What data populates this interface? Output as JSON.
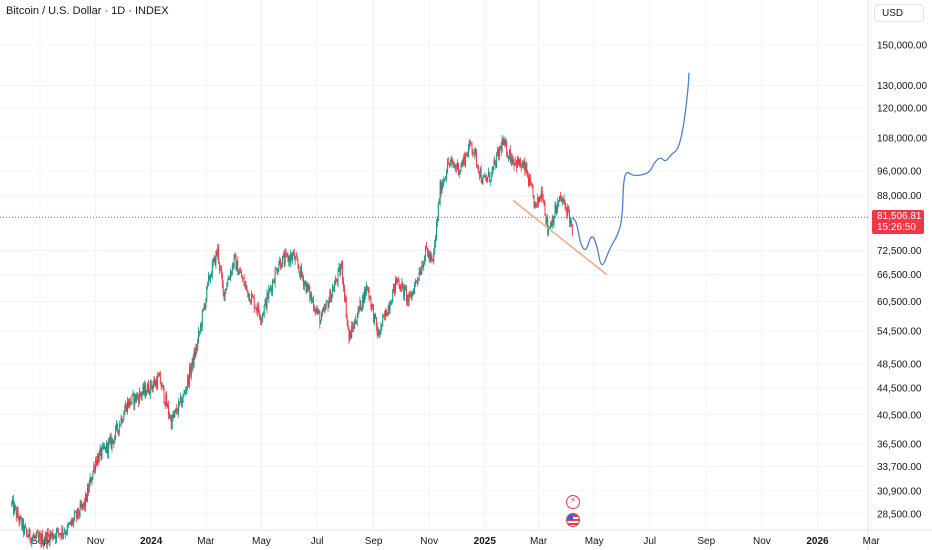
{
  "header": {
    "title": "Bitcoin / U.S. Dollar · 1D · INDEX"
  },
  "currency_button": {
    "label": "USD"
  },
  "last_price": {
    "value": "81,506.81",
    "countdown": "15:26:50",
    "color": "#f23645"
  },
  "colors": {
    "up": "#089981",
    "down": "#f23645",
    "projection": "#4f7fd6",
    "trendline": "#f7a172",
    "last_price_line": "#f23645"
  },
  "events": [
    {
      "name": "earnings-event-icon",
      "icon": "lightning-icon"
    },
    {
      "name": "economic-event-icon",
      "icon": "us-flag-icon"
    }
  ],
  "chart_data": {
    "type": "candlestick",
    "scale": "log",
    "grid": true,
    "x_ticks": [
      "Sep",
      "Nov",
      "2024",
      "Mar",
      "May",
      "Jul",
      "Sep",
      "Nov",
      "2025",
      "Mar",
      "May",
      "Jul",
      "Sep",
      "Nov",
      "2026",
      "Mar"
    ],
    "y_ticks": [
      "150,000.00",
      "130,000.00",
      "120,000.00",
      "108,000.00",
      "96,000.00",
      "88,000.00",
      "72,500.00",
      "66,500.00",
      "60,500.00",
      "54,500.00",
      "48,500.00",
      "44,500.00",
      "40,500.00",
      "36,500.00",
      "33,700.00",
      "30,900.00",
      "28,500.00"
    ],
    "y_range": [
      26000,
      170000
    ],
    "price_path": [
      [
        "2023-08-01",
        29500
      ],
      [
        "2023-08-17",
        26500
      ],
      [
        "2023-09-01",
        26000
      ],
      [
        "2023-09-15",
        26500
      ],
      [
        "2023-10-01",
        27000
      ],
      [
        "2023-10-20",
        29500
      ],
      [
        "2023-11-01",
        34500
      ],
      [
        "2023-11-20",
        37000
      ],
      [
        "2023-12-05",
        42000
      ],
      [
        "2023-12-20",
        43500
      ],
      [
        "2024-01-10",
        46000
      ],
      [
        "2024-01-23",
        39500
      ],
      [
        "2024-02-05",
        43000
      ],
      [
        "2024-02-20",
        51500
      ],
      [
        "2024-03-05",
        66000
      ],
      [
        "2024-03-14",
        72500
      ],
      [
        "2024-03-20",
        62000
      ],
      [
        "2024-04-01",
        70000
      ],
      [
        "2024-04-15",
        63000
      ],
      [
        "2024-05-01",
        57500
      ],
      [
        "2024-05-20",
        69500
      ],
      [
        "2024-06-05",
        71000
      ],
      [
        "2024-06-25",
        61000
      ],
      [
        "2024-07-05",
        56500
      ],
      [
        "2024-07-28",
        68500
      ],
      [
        "2024-08-05",
        53000
      ],
      [
        "2024-08-25",
        64000
      ],
      [
        "2024-09-06",
        53500
      ],
      [
        "2024-09-27",
        65500
      ],
      [
        "2024-10-10",
        60500
      ],
      [
        "2024-10-29",
        72500
      ],
      [
        "2024-11-05",
        69000
      ],
      [
        "2024-11-13",
        90000
      ],
      [
        "2024-11-22",
        98500
      ],
      [
        "2024-12-05",
        97000
      ],
      [
        "2024-12-17",
        106000
      ],
      [
        "2024-12-30",
        92500
      ],
      [
        "2025-01-08",
        94500
      ],
      [
        "2025-01-20",
        106000
      ],
      [
        "2025-02-01",
        100000
      ],
      [
        "2025-02-15",
        96500
      ],
      [
        "2025-02-26",
        84000
      ],
      [
        "2025-03-05",
        90000
      ],
      [
        "2025-03-11",
        78000
      ],
      [
        "2025-03-25",
        87000
      ],
      [
        "2025-04-03",
        83000
      ],
      [
        "2025-04-07",
        76500
      ]
    ],
    "projection": [
      [
        "2025-04-07",
        81500
      ],
      [
        "2025-04-12",
        80000
      ],
      [
        "2025-04-16",
        74000
      ],
      [
        "2025-04-22",
        72000
      ],
      [
        "2025-04-28",
        77000
      ],
      [
        "2025-05-04",
        74000
      ],
      [
        "2025-05-09",
        67500
      ],
      [
        "2025-05-18",
        73000
      ],
      [
        "2025-05-28",
        77000
      ],
      [
        "2025-06-01",
        82000
      ],
      [
        "2025-06-02",
        92000
      ],
      [
        "2025-06-05",
        96000
      ],
      [
        "2025-06-12",
        94500
      ],
      [
        "2025-06-20",
        94500
      ],
      [
        "2025-07-01",
        95500
      ],
      [
        "2025-07-06",
        99000
      ],
      [
        "2025-07-13",
        101000
      ],
      [
        "2025-07-18",
        99000
      ],
      [
        "2025-07-25",
        102000
      ],
      [
        "2025-08-01",
        103500
      ],
      [
        "2025-08-07",
        112000
      ],
      [
        "2025-08-12",
        128000
      ],
      [
        "2025-08-13",
        136000
      ]
    ],
    "trendline": [
      [
        "2025-02-01",
        86500
      ],
      [
        "2025-05-15",
        66500
      ]
    ],
    "last_price": 81506.81
  }
}
